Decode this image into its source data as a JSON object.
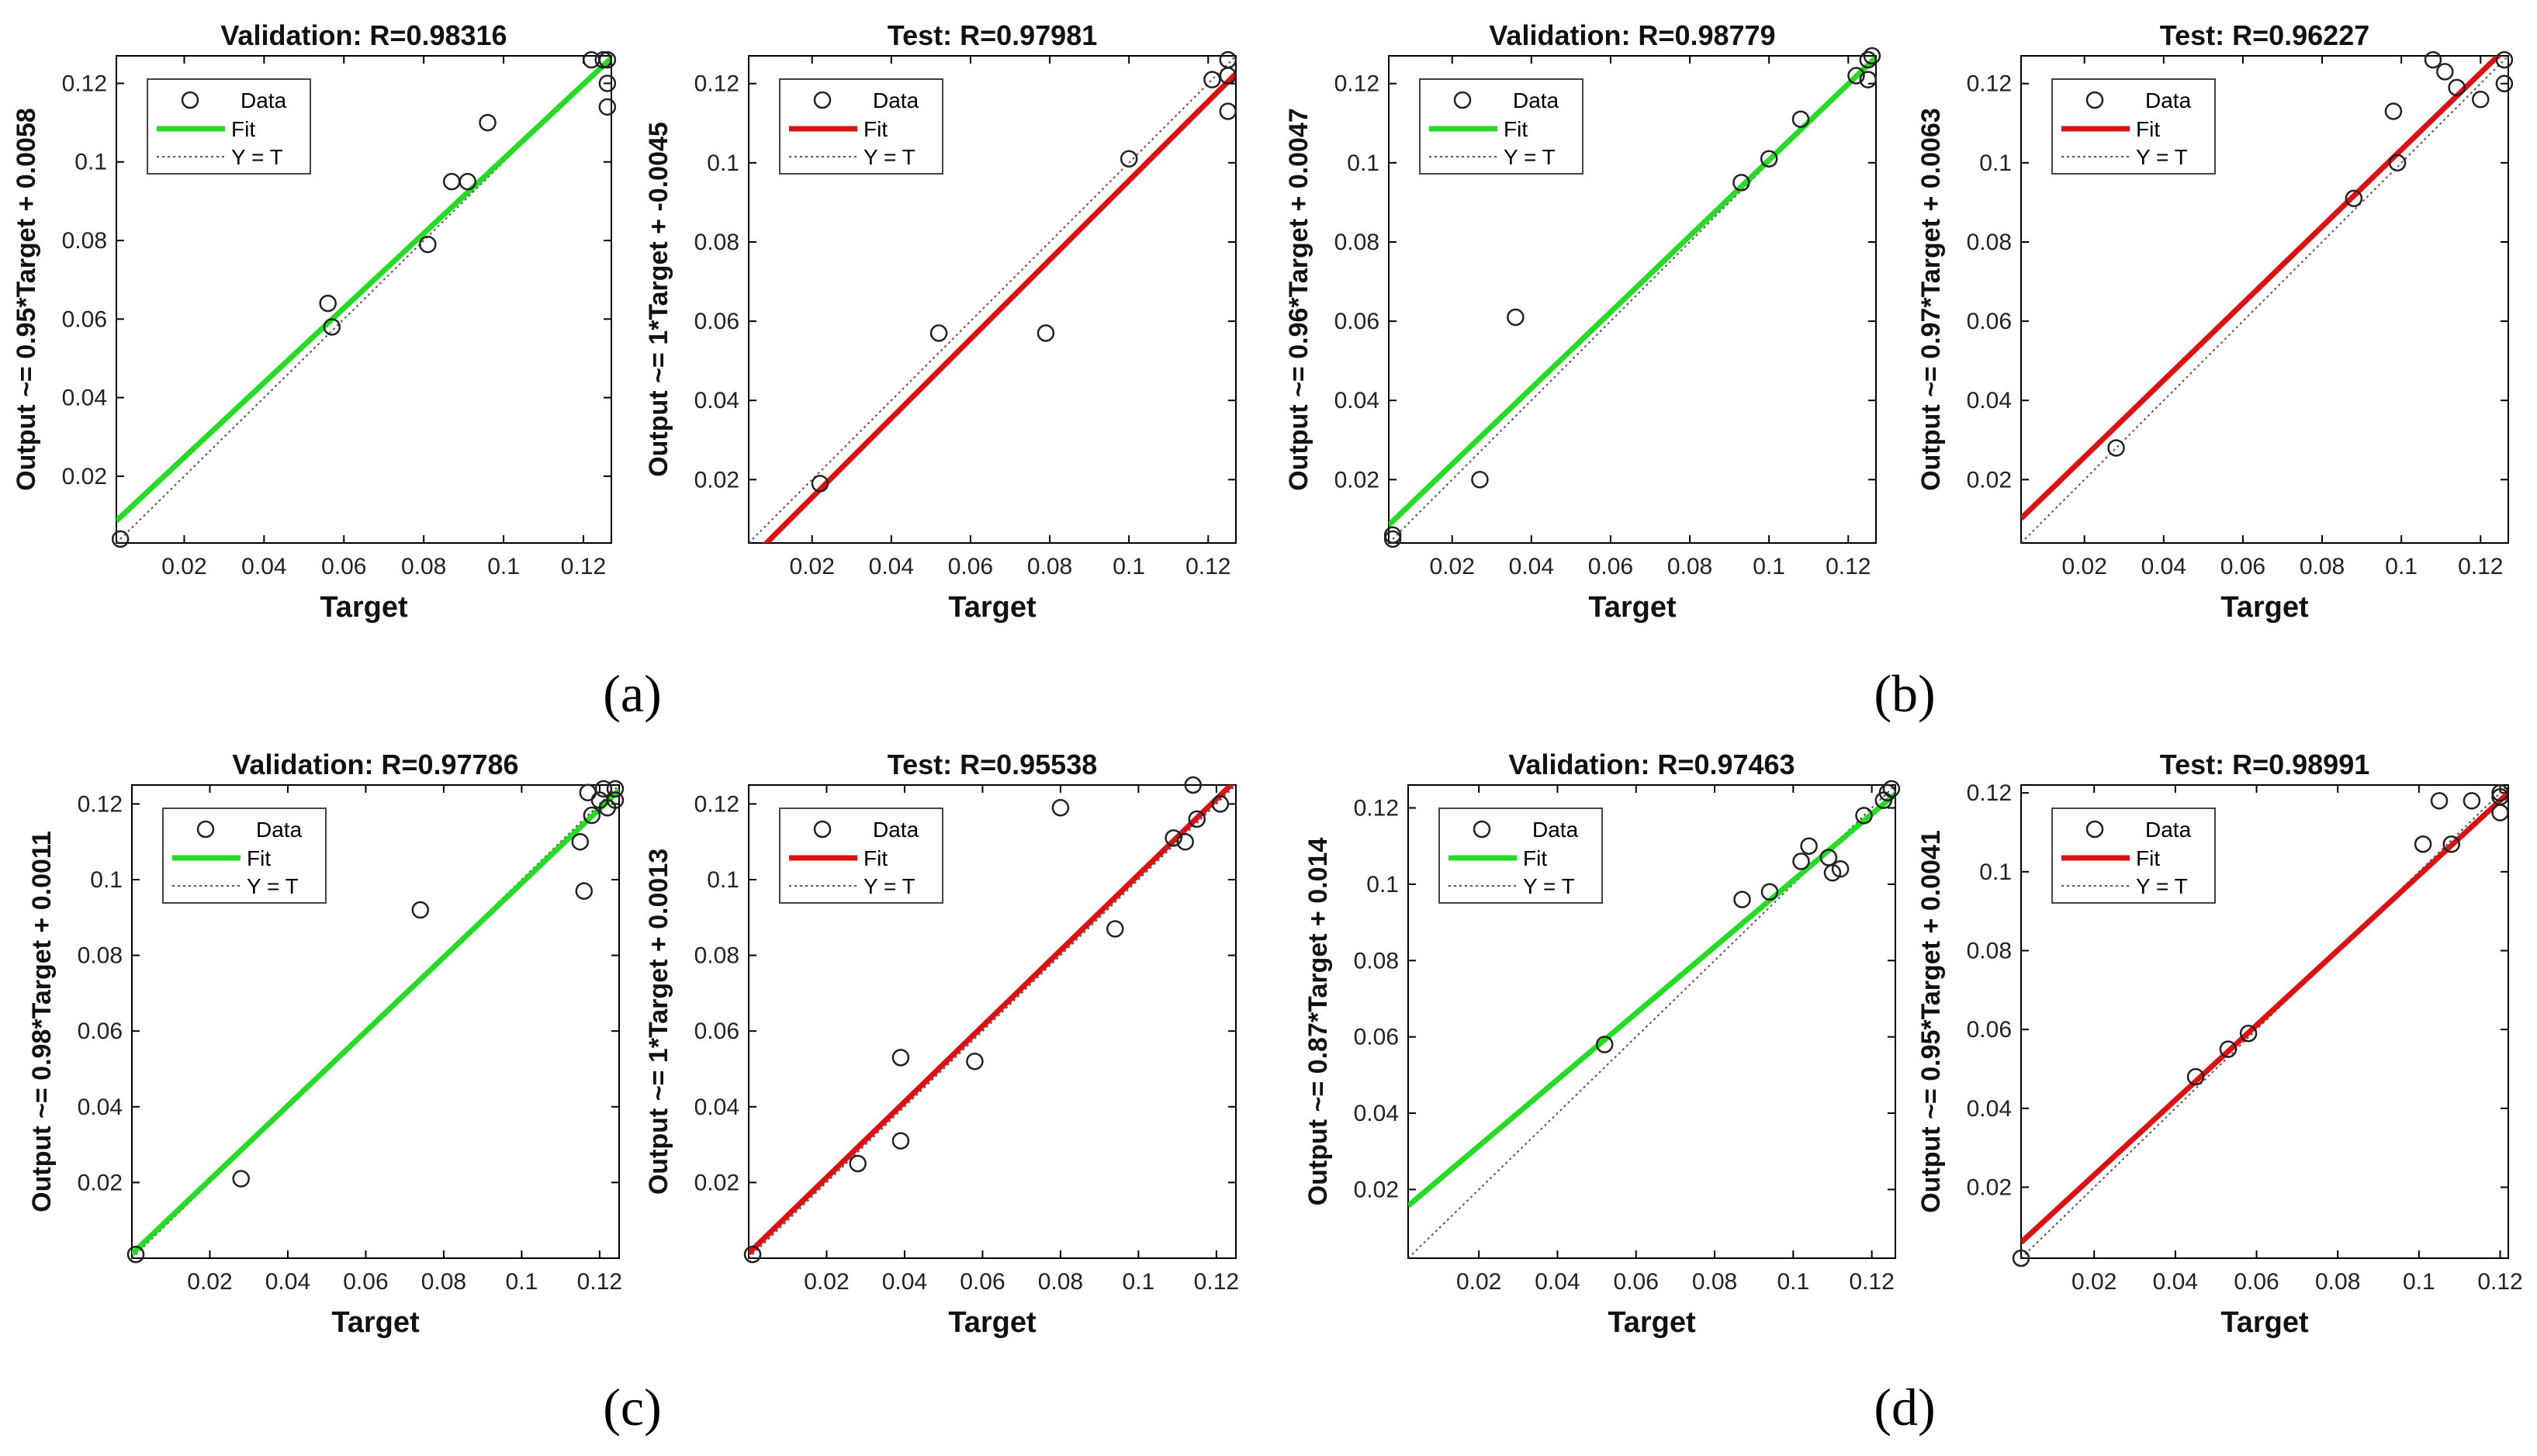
{
  "colors": {
    "validation_fit": "#22dd22",
    "test_fit": "#dd1111",
    "axes": "#000000",
    "identity": "#555555"
  },
  "legend": {
    "data": "Data",
    "fit": "Fit",
    "identity": "Y = T"
  },
  "xlabel": "Target",
  "panel_labels": [
    "(a)",
    "(b)",
    "(c)",
    "(d)"
  ],
  "chart_data": [
    {
      "panel": "(a)",
      "subset": "validation",
      "type": "scatter",
      "title": "Validation: R=0.98316",
      "ylabel": "Output ~= 0.95*Target + 0.0058",
      "xlabel": "Target",
      "xlim": [
        0.003,
        0.127
      ],
      "ylim": [
        0.003,
        0.127
      ],
      "xticks": [
        "0.02",
        "0.04",
        "0.06",
        "0.08",
        "0.1",
        "0.12"
      ],
      "yticks": [
        "0.02",
        "0.04",
        "0.06",
        "0.08",
        "0.1",
        "0.12"
      ],
      "fit": {
        "slope": 0.95,
        "intercept": 0.0058
      },
      "points": [
        [
          0.004,
          0.004
        ],
        [
          0.056,
          0.064
        ],
        [
          0.057,
          0.058
        ],
        [
          0.081,
          0.079
        ],
        [
          0.087,
          0.095
        ],
        [
          0.091,
          0.095
        ],
        [
          0.096,
          0.11
        ],
        [
          0.122,
          0.126
        ],
        [
          0.125,
          0.126
        ],
        [
          0.126,
          0.126
        ],
        [
          0.126,
          0.12
        ],
        [
          0.126,
          0.114
        ]
      ]
    },
    {
      "panel": "(a)",
      "subset": "test",
      "type": "scatter",
      "title": "Test: R=0.97981",
      "ylabel": "Output ~= 1*Target + -0.0045",
      "xlabel": "Target",
      "xlim": [
        0.004,
        0.127
      ],
      "ylim": [
        0.004,
        0.127
      ],
      "xticks": [
        "0.02",
        "0.04",
        "0.06",
        "0.08",
        "0.1",
        "0.12"
      ],
      "yticks": [
        "0.02",
        "0.04",
        "0.06",
        "0.08",
        "0.1",
        "0.12"
      ],
      "fit": {
        "slope": 1.0,
        "intercept": -0.0045
      },
      "points": [
        [
          0.022,
          0.019
        ],
        [
          0.052,
          0.057
        ],
        [
          0.079,
          0.057
        ],
        [
          0.1,
          0.101
        ],
        [
          0.121,
          0.121
        ],
        [
          0.125,
          0.126
        ],
        [
          0.125,
          0.122
        ],
        [
          0.125,
          0.113
        ]
      ]
    },
    {
      "panel": "(b)",
      "subset": "validation",
      "type": "scatter",
      "title": "Validation: R=0.98779",
      "ylabel": "Output ~= 0.96*Target + 0.0047",
      "xlabel": "Target",
      "xlim": [
        0.004,
        0.127
      ],
      "ylim": [
        0.004,
        0.127
      ],
      "xticks": [
        "0.02",
        "0.04",
        "0.06",
        "0.08",
        "0.1",
        "0.12"
      ],
      "yticks": [
        "0.02",
        "0.04",
        "0.06",
        "0.08",
        "0.1",
        "0.12"
      ],
      "fit": {
        "slope": 0.96,
        "intercept": 0.0047
      },
      "points": [
        [
          0.005,
          0.006
        ],
        [
          0.005,
          0.005
        ],
        [
          0.027,
          0.02
        ],
        [
          0.036,
          0.061
        ],
        [
          0.093,
          0.095
        ],
        [
          0.1,
          0.101
        ],
        [
          0.108,
          0.111
        ],
        [
          0.122,
          0.122
        ],
        [
          0.125,
          0.126
        ],
        [
          0.126,
          0.127
        ],
        [
          0.125,
          0.121
        ]
      ]
    },
    {
      "panel": "(b)",
      "subset": "test",
      "type": "scatter",
      "title": "Test: R=0.96227",
      "ylabel": "Output ~= 0.97*Target + 0.0063",
      "xlabel": "Target",
      "xlim": [
        0.004,
        0.127
      ],
      "ylim": [
        0.004,
        0.127
      ],
      "xticks": [
        "0.02",
        "0.04",
        "0.06",
        "0.08",
        "0.1",
        "0.12"
      ],
      "yticks": [
        "0.02",
        "0.04",
        "0.06",
        "0.08",
        "0.1",
        "0.12"
      ],
      "fit": {
        "slope": 0.97,
        "intercept": 0.0063
      },
      "points": [
        [
          0.028,
          0.028
        ],
        [
          0.088,
          0.091
        ],
        [
          0.098,
          0.113
        ],
        [
          0.099,
          0.1
        ],
        [
          0.108,
          0.126
        ],
        [
          0.111,
          0.123
        ],
        [
          0.114,
          0.119
        ],
        [
          0.12,
          0.116
        ],
        [
          0.126,
          0.126
        ],
        [
          0.126,
          0.12
        ]
      ]
    },
    {
      "panel": "(c)",
      "subset": "validation",
      "type": "scatter",
      "title": "Validation: R=0.97786",
      "ylabel": "Output ~= 0.98*Target + 0.0011",
      "xlabel": "Target",
      "xlim": [
        0.0,
        0.125
      ],
      "ylim": [
        0.0,
        0.125
      ],
      "xticks": [
        "0.02",
        "0.04",
        "0.06",
        "0.08",
        "0.1",
        "0.12"
      ],
      "yticks": [
        "0.02",
        "0.04",
        "0.06",
        "0.08",
        "0.1",
        "0.12"
      ],
      "fit": {
        "slope": 0.98,
        "intercept": 0.0011
      },
      "points": [
        [
          0.001,
          0.001
        ],
        [
          0.028,
          0.021
        ],
        [
          0.074,
          0.092
        ],
        [
          0.115,
          0.11
        ],
        [
          0.116,
          0.097
        ],
        [
          0.117,
          0.123
        ],
        [
          0.118,
          0.117
        ],
        [
          0.12,
          0.121
        ],
        [
          0.121,
          0.124
        ],
        [
          0.122,
          0.119
        ],
        [
          0.124,
          0.124
        ],
        [
          0.124,
          0.121
        ]
      ]
    },
    {
      "panel": "(c)",
      "subset": "test",
      "type": "scatter",
      "title": "Test: R=0.95538",
      "ylabel": "Output ~= 1*Target + 0.0013",
      "xlabel": "Target",
      "xlim": [
        0.0,
        0.125
      ],
      "ylim": [
        0.0,
        0.125
      ],
      "xticks": [
        "0.02",
        "0.04",
        "0.06",
        "0.08",
        "0.1",
        "0.12"
      ],
      "yticks": [
        "0.02",
        "0.04",
        "0.06",
        "0.08",
        "0.1",
        "0.12"
      ],
      "fit": {
        "slope": 1.0,
        "intercept": 0.0013
      },
      "points": [
        [
          0.001,
          0.001
        ],
        [
          0.028,
          0.025
        ],
        [
          0.039,
          0.053
        ],
        [
          0.039,
          0.031
        ],
        [
          0.058,
          0.052
        ],
        [
          0.08,
          0.119
        ],
        [
          0.094,
          0.087
        ],
        [
          0.109,
          0.111
        ],
        [
          0.112,
          0.11
        ],
        [
          0.114,
          0.125
        ],
        [
          0.115,
          0.116
        ],
        [
          0.121,
          0.12
        ]
      ]
    },
    {
      "panel": "(d)",
      "subset": "validation",
      "type": "scatter",
      "title": "Validation: R=0.97463",
      "ylabel": "Output ~= 0.87*Target + 0.014",
      "xlabel": "Target",
      "xlim": [
        0.002,
        0.126
      ],
      "ylim": [
        0.002,
        0.126
      ],
      "xticks": [
        "0.02",
        "0.04",
        "0.06",
        "0.08",
        "0.1",
        "0.12"
      ],
      "yticks": [
        "0.02",
        "0.04",
        "0.06",
        "0.08",
        "0.1",
        "0.12"
      ],
      "fit": {
        "slope": 0.87,
        "intercept": 0.014
      },
      "points": [
        [
          0.052,
          0.058
        ],
        [
          0.087,
          0.096
        ],
        [
          0.094,
          0.098
        ],
        [
          0.102,
          0.106
        ],
        [
          0.104,
          0.11
        ],
        [
          0.109,
          0.107
        ],
        [
          0.11,
          0.103
        ],
        [
          0.112,
          0.104
        ],
        [
          0.118,
          0.118
        ],
        [
          0.123,
          0.122
        ],
        [
          0.124,
          0.124
        ],
        [
          0.125,
          0.125
        ]
      ]
    },
    {
      "panel": "(d)",
      "subset": "test",
      "type": "scatter",
      "title": "Test: R=0.98991",
      "ylabel": "Output ~= 0.95*Target + 0.0041",
      "xlabel": "Target",
      "xlim": [
        0.002,
        0.122
      ],
      "ylim": [
        0.002,
        0.122
      ],
      "xticks": [
        "0.02",
        "0.04",
        "0.06",
        "0.08",
        "0.1",
        "0.12"
      ],
      "yticks": [
        "0.02",
        "0.04",
        "0.06",
        "0.08",
        "0.1",
        "0.12"
      ],
      "fit": {
        "slope": 0.95,
        "intercept": 0.0041
      },
      "points": [
        [
          0.002,
          0.002
        ],
        [
          0.045,
          0.048
        ],
        [
          0.053,
          0.055
        ],
        [
          0.058,
          0.059
        ],
        [
          0.101,
          0.107
        ],
        [
          0.105,
          0.118
        ],
        [
          0.108,
          0.107
        ],
        [
          0.113,
          0.118
        ],
        [
          0.12,
          0.12
        ],
        [
          0.12,
          0.119
        ],
        [
          0.12,
          0.115
        ]
      ]
    }
  ]
}
